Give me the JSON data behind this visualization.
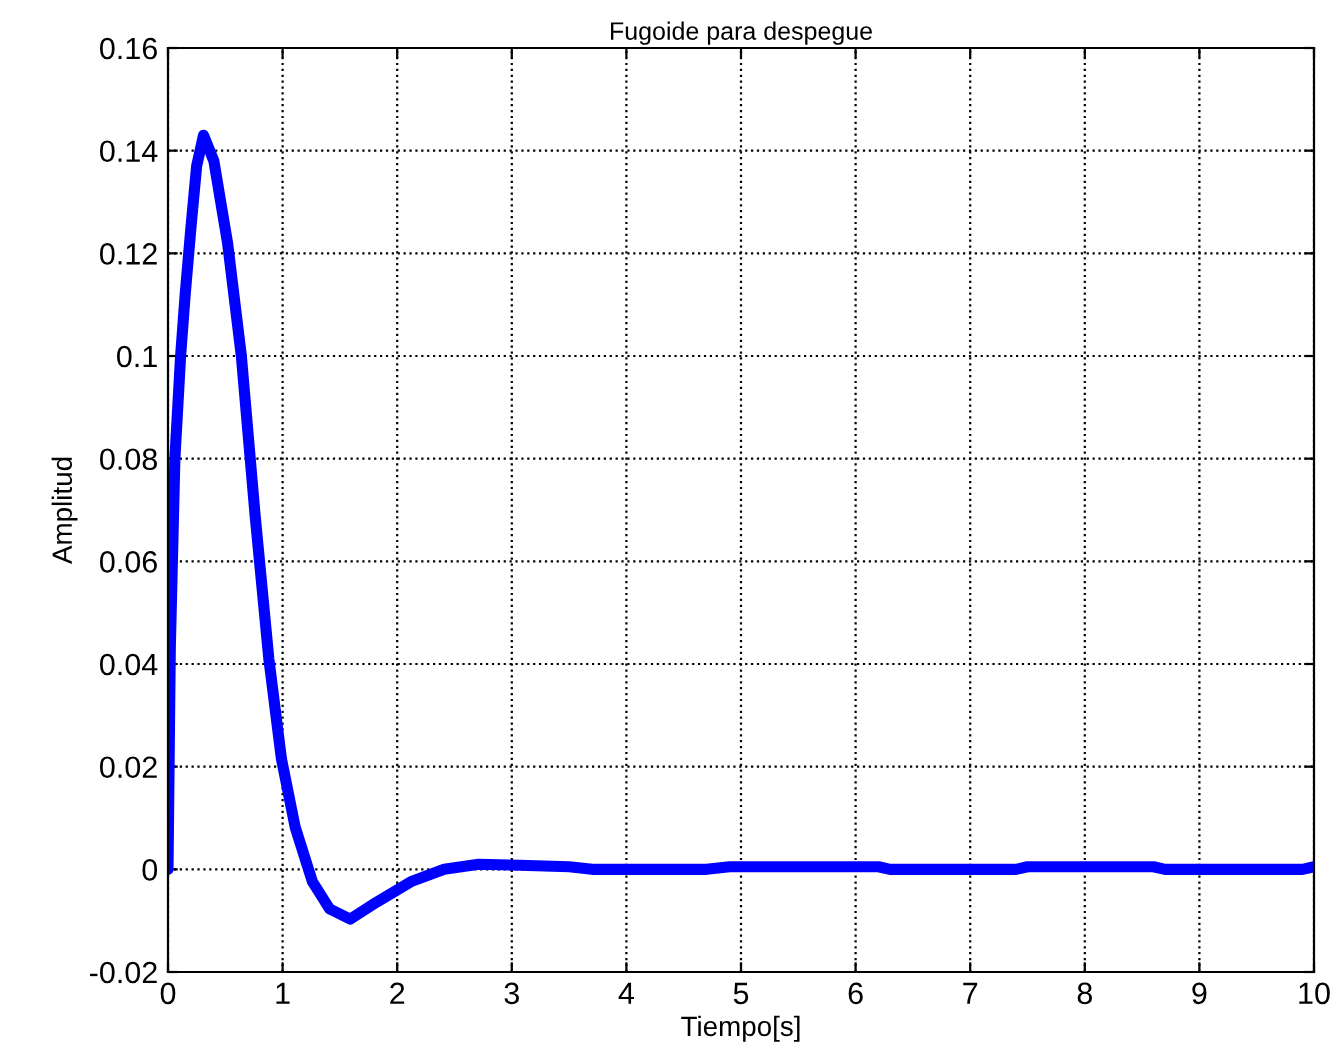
{
  "chart_data": {
    "type": "line",
    "title": "Fugoide para despegue",
    "xlabel": "Tiempo[s]",
    "ylabel": "Amplitud",
    "xlim": [
      0,
      10
    ],
    "ylim": [
      -0.02,
      0.16
    ],
    "xticks": [
      0,
      1,
      2,
      3,
      4,
      5,
      6,
      7,
      8,
      9,
      10
    ],
    "yticks": [
      -0.02,
      0,
      0.02,
      0.04,
      0.06,
      0.08,
      0.1,
      0.12,
      0.14,
      0.16
    ],
    "grid": true,
    "line_style": "solid",
    "marker": "none",
    "series": [
      {
        "color": "#0000ff",
        "x": [
          0,
          0.02,
          0.06,
          0.11,
          0.15,
          0.2,
          0.25,
          0.31,
          0.4,
          0.52,
          0.64,
          0.76,
          0.88,
          0.99,
          1.11,
          1.26,
          1.41,
          1.59,
          1.82,
          2.12,
          2.41,
          2.71,
          3.07,
          3.5,
          3.7,
          4.7,
          4.9,
          6.2,
          6.3,
          7.4,
          7.5,
          8.6,
          8.7,
          9.9,
          10
        ],
        "values": [
          0,
          0.043,
          0.08,
          0.1,
          0.112,
          0.125,
          0.137,
          0.143,
          0.138,
          0.122,
          0.1,
          0.069,
          0.041,
          0.0215,
          0.0082,
          -0.0024,
          -0.0077,
          -0.0097,
          -0.0064,
          -0.0024,
          0,
          0.001,
          0.0008,
          0.0005,
          0,
          0,
          0.0005,
          0.0005,
          0,
          0,
          0.0005,
          0.0005,
          0,
          0,
          0.0005
        ]
      }
    ]
  }
}
